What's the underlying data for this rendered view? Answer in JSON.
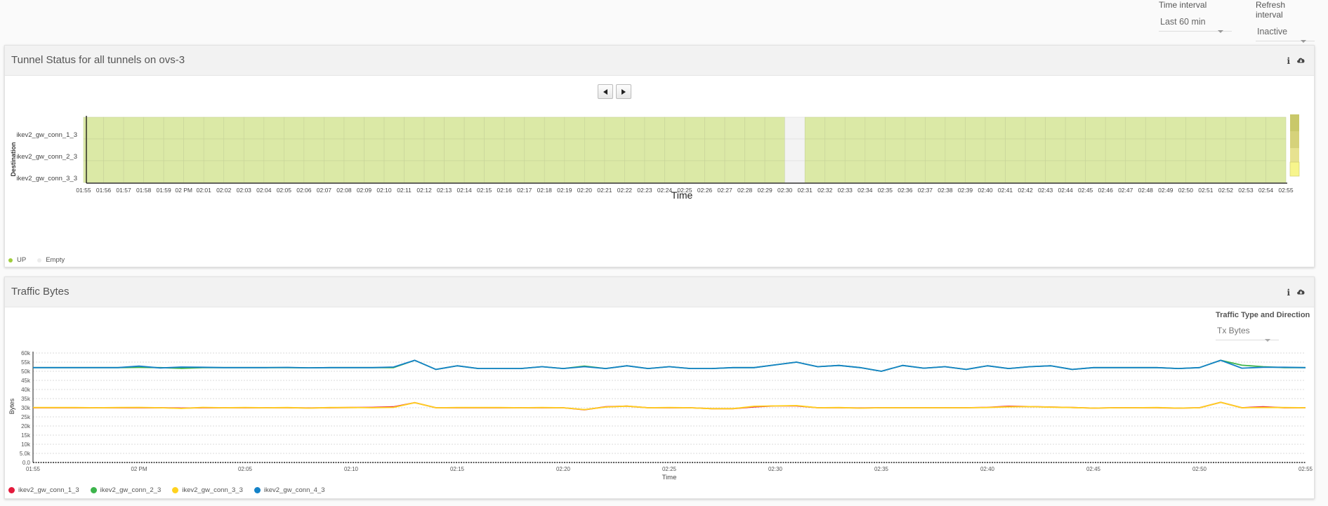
{
  "controls": {
    "time_interval": {
      "label": "Time interval",
      "value": "Last 60 min"
    },
    "refresh_interval": {
      "label": "Refresh interval",
      "value": "Inactive"
    }
  },
  "panel1": {
    "title": "Tunnel Status for all tunnels on ovs-3",
    "y_axis_label": "Destination",
    "x_axis_label": "Time",
    "rows": [
      "ikev2_gw_conn_1_3",
      "ikev2_gw_conn_2_3",
      "ikev2_gw_conn_3_3"
    ],
    "time_ticks": [
      "01:55",
      "01:56",
      "01:57",
      "01:58",
      "01:59",
      "02 PM",
      "02:01",
      "02:02",
      "02:03",
      "02:04",
      "02:05",
      "02:06",
      "02:07",
      "02:08",
      "02:09",
      "02:10",
      "02:11",
      "02:12",
      "02:13",
      "02:14",
      "02:15",
      "02:16",
      "02:17",
      "02:18",
      "02:19",
      "02:20",
      "02:21",
      "02:22",
      "02:23",
      "02:24",
      "02:25",
      "02:26",
      "02:27",
      "02:28",
      "02:29",
      "02:30",
      "02:31",
      "02:32",
      "02:33",
      "02:34",
      "02:35",
      "02:36",
      "02:37",
      "02:38",
      "02:39",
      "02:40",
      "02:41",
      "02:42",
      "02:43",
      "02:44",
      "02:45",
      "02:46",
      "02:47",
      "02:48",
      "02:49",
      "02:50",
      "02:51",
      "02:52",
      "02:53",
      "02:54",
      "02:55"
    ],
    "empty_columns": [
      35
    ],
    "colors": {
      "up": "#dbe9a6",
      "empty": "#f3f3f3",
      "grid": "#c7d39a"
    },
    "legend": [
      {
        "label": "UP",
        "color": "#9fcd3c"
      },
      {
        "label": "Empty",
        "color": "#ececec"
      }
    ]
  },
  "panel2": {
    "title": "Traffic Bytes",
    "selector": {
      "label": "Traffic Type and Direction",
      "value": "Tx Bytes"
    },
    "legend": [
      {
        "label": "ikev2_gw_conn_1_3",
        "color": "#e31a3c"
      },
      {
        "label": "ikev2_gw_conn_2_3",
        "color": "#3cb44b"
      },
      {
        "label": "ikev2_gw_conn_3_3",
        "color": "#ffd21f"
      },
      {
        "label": "ikev2_gw_conn_4_3",
        "color": "#1482c8"
      }
    ]
  },
  "chart_data": {
    "type": "line",
    "xlabel": "Time",
    "ylabel": "Bytes",
    "ylim": [
      0,
      60000
    ],
    "y_ticks": [
      "0.0",
      "5.0k",
      "10k",
      "15k",
      "20k",
      "25k",
      "30k",
      "35k",
      "40k",
      "45k",
      "50k",
      "55k",
      "60k"
    ],
    "x_ticks": [
      "01:55",
      "02 PM",
      "02:05",
      "02:10",
      "02:15",
      "02:20",
      "02:25",
      "02:30",
      "02:35",
      "02:40",
      "02:45",
      "02:50",
      "02:55"
    ],
    "x_minutes": [
      0,
      1,
      2,
      3,
      4,
      5,
      6,
      7,
      8,
      9,
      10,
      11,
      12,
      13,
      14,
      15,
      16,
      17,
      18,
      19,
      20,
      21,
      22,
      23,
      24,
      25,
      26,
      27,
      28,
      29,
      30,
      31,
      32,
      33,
      34,
      35,
      36,
      37,
      38,
      39,
      40,
      41,
      42,
      43,
      44,
      45,
      46,
      47,
      48,
      49,
      50,
      51,
      52,
      53,
      54,
      55,
      56,
      57,
      58,
      59,
      60
    ],
    "grid": true,
    "series": [
      {
        "name": "ikev2_gw_conn_1_3",
        "color": "#e31a3c",
        "values": [
          30000,
          30000,
          30000,
          30000,
          30000,
          30000,
          30000,
          29800,
          30000,
          30000,
          30000,
          30000,
          30000,
          29900,
          30000,
          30100,
          30200,
          30500,
          32800,
          30000,
          30000,
          30000,
          30000,
          30000,
          30000,
          30000,
          28900,
          30500,
          30900,
          30000,
          30000,
          30000,
          29500,
          29500,
          30500,
          31000,
          31000,
          30000,
          30000,
          29900,
          30000,
          30000,
          30000,
          30000,
          30000,
          30200,
          30800,
          30600,
          30400,
          30100,
          29800,
          30000,
          30000,
          30000,
          29800,
          30000,
          33000,
          30000,
          30500,
          30000,
          30000
        ]
      },
      {
        "name": "ikev2_gw_conn_2_3",
        "color": "#3cb44b",
        "values": [
          52000,
          52000,
          52000,
          52000,
          52000,
          52100,
          52000,
          51600,
          52000,
          52000,
          52000,
          52000,
          52000,
          51900,
          52000,
          52000,
          52000,
          52000,
          56000,
          51000,
          53000,
          51500,
          51500,
          51500,
          52500,
          51500,
          52800,
          51500,
          53000,
          51500,
          52500,
          51500,
          51500,
          52000,
          52000,
          53500,
          55000,
          52500,
          53200,
          52000,
          50000,
          53200,
          51700,
          52500,
          51000,
          53000,
          51500,
          52500,
          53000,
          51000,
          52000,
          52000,
          52000,
          52000,
          51500,
          52000,
          56000,
          53300,
          52500,
          52000,
          52000
        ]
      },
      {
        "name": "ikev2_gw_conn_3_3",
        "color": "#ffd21f",
        "values": [
          30100,
          30100,
          30100,
          30000,
          30100,
          30200,
          30000,
          29600,
          30200,
          30000,
          30100,
          30000,
          30100,
          29800,
          30100,
          30100,
          30000,
          30200,
          32800,
          30000,
          30100,
          30100,
          30100,
          30000,
          30100,
          30000,
          29000,
          30400,
          30900,
          30000,
          30100,
          30000,
          29500,
          29500,
          30800,
          31000,
          31200,
          30000,
          30100,
          29800,
          30000,
          30000,
          30000,
          30000,
          30000,
          30100,
          30500,
          30600,
          30300,
          30100,
          29800,
          30000,
          30000,
          30100,
          29800,
          30000,
          33000,
          30000,
          30100,
          30100,
          30000
        ]
      },
      {
        "name": "ikev2_gw_conn_4_3",
        "color": "#1482c8",
        "values": [
          52000,
          52000,
          52000,
          52000,
          52000,
          52800,
          51800,
          52300,
          52200,
          52000,
          52000,
          52000,
          52100,
          51900,
          52000,
          52000,
          52000,
          52300,
          56000,
          51000,
          53000,
          51500,
          51500,
          51500,
          52500,
          51500,
          52500,
          51500,
          53000,
          51500,
          52500,
          51500,
          51500,
          52000,
          52000,
          53500,
          55000,
          52500,
          53200,
          52000,
          50000,
          53200,
          51700,
          52500,
          51000,
          53000,
          51500,
          52500,
          53000,
          51000,
          52000,
          52000,
          52000,
          52000,
          51500,
          52000,
          56000,
          51700,
          52200,
          52200,
          52000
        ]
      }
    ]
  }
}
